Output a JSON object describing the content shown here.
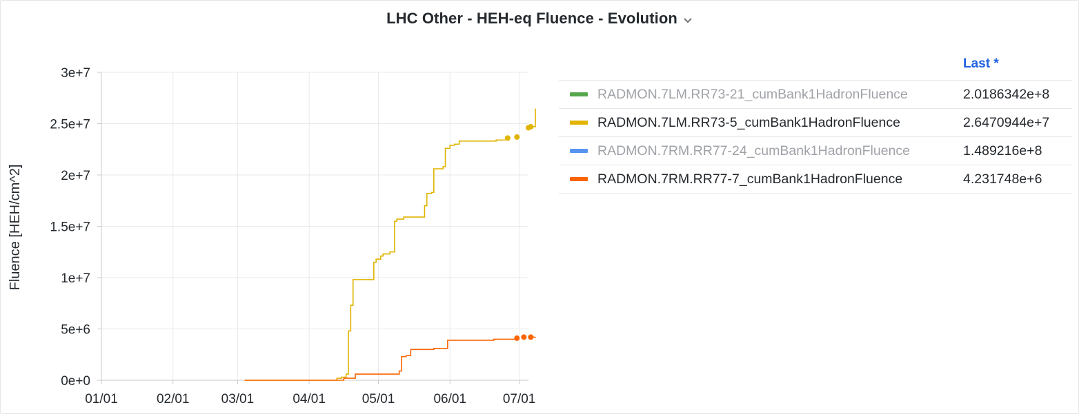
{
  "panel": {
    "title": "LHC Other - HEH-eq Fluence - Evolution"
  },
  "legend": {
    "header_last": "Last *",
    "rows": [
      {
        "name": "RADMON.7LM.RR73-21_cumBank1HadronFluence",
        "last": "2.0186342e+8",
        "color": "#56a64b",
        "hidden": true
      },
      {
        "name": "RADMON.7LM.RR73-5_cumBank1HadronFluence",
        "last": "2.6470944e+7",
        "color": "#e0b400",
        "hidden": false
      },
      {
        "name": "RADMON.7RM.RR77-24_cumBank1HadronFluence",
        "last": "1.489216e+8",
        "color": "#5794f2",
        "hidden": true
      },
      {
        "name": "RADMON.7RM.RR77-7_cumBank1HadronFluence",
        "last": "4.231748e+6",
        "color": "#fa6400",
        "hidden": false
      }
    ]
  },
  "chart_data": {
    "type": "line",
    "ylabel": "Fluence [HEH/cm^2]",
    "xlabel": "",
    "ylim": [
      0,
      30000000
    ],
    "xlim_days": [
      0,
      185
    ],
    "y_ticks": [
      {
        "value": 0,
        "label": "0e+0"
      },
      {
        "value": 5000000,
        "label": "5e+6"
      },
      {
        "value": 10000000,
        "label": "1e+7"
      },
      {
        "value": 15000000,
        "label": "1.5e+7"
      },
      {
        "value": 20000000,
        "label": "2e+7"
      },
      {
        "value": 25000000,
        "label": "2.5e+7"
      },
      {
        "value": 30000000,
        "label": "3e+7"
      }
    ],
    "x_ticks": [
      {
        "day": 0,
        "label": "01/01"
      },
      {
        "day": 31,
        "label": "02/01"
      },
      {
        "day": 59,
        "label": "03/01"
      },
      {
        "day": 90,
        "label": "04/01"
      },
      {
        "day": 120,
        "label": "05/01"
      },
      {
        "day": 151,
        "label": "06/01"
      },
      {
        "day": 181,
        "label": "07/01"
      }
    ],
    "grid": true,
    "series": [
      {
        "name": "RADMON.7LM.RR73-5_cumBank1HadronFluence",
        "color": "#e0b400",
        "step": true,
        "points": [
          [
            62,
            0
          ],
          [
            100,
            0
          ],
          [
            102,
            200000
          ],
          [
            104,
            300000
          ],
          [
            106,
            600000
          ],
          [
            107,
            4800000
          ],
          [
            108,
            7300000
          ],
          [
            109,
            9800000
          ],
          [
            117,
            9800000
          ],
          [
            118,
            11500000
          ],
          [
            119,
            11800000
          ],
          [
            121,
            12100000
          ],
          [
            122,
            12300000
          ],
          [
            125,
            12500000
          ],
          [
            127,
            15500000
          ],
          [
            128,
            15700000
          ],
          [
            131,
            15900000
          ],
          [
            139,
            15900000
          ],
          [
            140,
            17000000
          ],
          [
            141,
            18200000
          ],
          [
            143,
            18300000
          ],
          [
            144,
            20600000
          ],
          [
            148,
            20800000
          ],
          [
            149,
            22600000
          ],
          [
            151,
            22900000
          ],
          [
            153,
            23000000
          ],
          [
            155,
            23300000
          ],
          [
            171,
            23400000
          ]
        ],
        "dots": [
          [
            176,
            23600000
          ],
          [
            180,
            23700000
          ],
          [
            185,
            24600000
          ],
          [
            186,
            24700000
          ]
        ],
        "tail": [
          [
            188,
            24700000
          ],
          [
            188,
            26470944
          ]
        ]
      },
      {
        "name": "RADMON.7RM.RR77-7_cumBank1HadronFluence",
        "color": "#fa6400",
        "step": true,
        "points": [
          [
            62,
            0
          ],
          [
            102,
            0
          ],
          [
            105,
            200000
          ],
          [
            110,
            600000
          ],
          [
            127,
            600000
          ],
          [
            129,
            900000
          ],
          [
            130,
            2300000
          ],
          [
            132,
            2400000
          ],
          [
            134,
            3000000
          ],
          [
            143,
            3000000
          ],
          [
            144,
            3100000
          ],
          [
            149,
            3100000
          ],
          [
            150,
            3900000
          ],
          [
            170,
            4000000
          ]
        ],
        "dots": [
          [
            180,
            4100000
          ],
          [
            183,
            4200000
          ],
          [
            186,
            4200000
          ]
        ],
        "tail": [
          [
            188,
            4231748
          ]
        ]
      }
    ]
  }
}
